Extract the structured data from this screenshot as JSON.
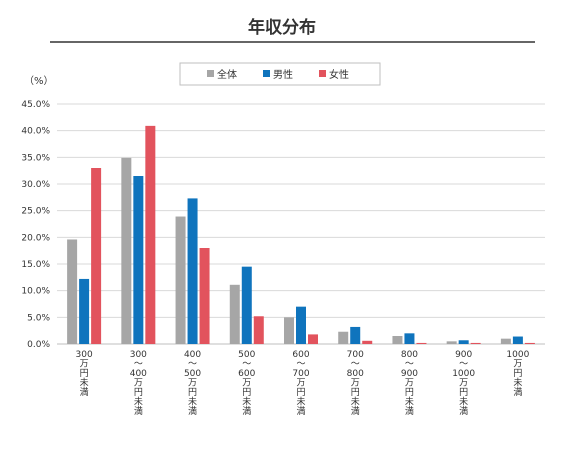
{
  "chart_data": {
    "type": "bar",
    "title": "年収分布",
    "y_unit_label": "（%）",
    "ylim": [
      0,
      45
    ],
    "yticks": [
      "0.0%",
      "5.0%",
      "10.0%",
      "15.0%",
      "20.0%",
      "25.0%",
      "30.0%",
      "35.0%",
      "40.0%",
      "45.0%"
    ],
    "y_tick_values": [
      0,
      5,
      10,
      15,
      20,
      25,
      30,
      35,
      40,
      45
    ],
    "grid": true,
    "legend_position": "top-center",
    "categories": [
      [
        "300",
        "万",
        "円",
        "未",
        "満"
      ],
      [
        "300",
        "〜",
        "400",
        "万",
        "円",
        "未",
        "満"
      ],
      [
        "400",
        "〜",
        "500",
        "万",
        "円",
        "未",
        "満"
      ],
      [
        "500",
        "〜",
        "600",
        "万",
        "円",
        "未",
        "満"
      ],
      [
        "600",
        "〜",
        "700",
        "万",
        "円",
        "未",
        "満"
      ],
      [
        "700",
        "〜",
        "800",
        "万",
        "円",
        "未",
        "満"
      ],
      [
        "800",
        "〜",
        "900",
        "万",
        "円",
        "未",
        "満"
      ],
      [
        "900",
        "〜",
        "1000",
        "万",
        "円",
        "未",
        "満"
      ],
      [
        "1000",
        "万",
        "円",
        "未",
        "満"
      ]
    ],
    "series": [
      {
        "name": "全体",
        "color": "#a6a6a6",
        "values": [
          19.6,
          34.9,
          23.9,
          11.1,
          5.0,
          2.3,
          1.5,
          0.5,
          1.0
        ]
      },
      {
        "name": "男性",
        "color": "#0f74bd",
        "values": [
          12.2,
          31.5,
          27.3,
          14.5,
          7.0,
          3.2,
          2.0,
          0.7,
          1.4
        ]
      },
      {
        "name": "女性",
        "color": "#e2535d",
        "values": [
          33.0,
          40.9,
          18.0,
          5.2,
          1.8,
          0.6,
          0.2,
          0.2,
          0.2
        ]
      }
    ]
  }
}
